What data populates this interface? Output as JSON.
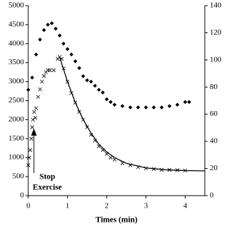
{
  "chart_data": {
    "type": "line",
    "x_label": "Times (min)",
    "annotation": [
      "Stop",
      "Exercise"
    ],
    "xlim": [
      0,
      4.5
    ],
    "xticks": [
      0,
      1,
      2,
      3,
      4
    ],
    "ylim": [
      0,
      5000
    ],
    "yticks": [
      0,
      500,
      1000,
      1500,
      2000,
      2500,
      3000,
      3500,
      4000,
      4500,
      5000
    ],
    "y2lim": [
      0,
      140
    ],
    "y2ticks": [
      0,
      20,
      40,
      60,
      80,
      100,
      120,
      140
    ],
    "series": [
      {
        "marker": "diamond",
        "color": "#000000",
        "axis": "y2",
        "x": [
          0,
          0.1,
          0.2,
          0.3,
          0.4,
          0.5,
          0.6,
          0.7,
          0.8,
          0.9,
          1.0,
          1.1,
          1.2,
          1.3,
          1.4,
          1.5,
          1.6,
          1.7,
          1.8,
          1.9,
          2.0,
          2.1,
          2.2,
          2.4,
          2.6,
          2.8,
          3.0,
          3.2,
          3.4,
          3.6,
          3.8,
          4.0,
          4.1
        ],
        "values": [
          78,
          87,
          104,
          115,
          122,
          126,
          127,
          123,
          118,
          112,
          108,
          104,
          99,
          94,
          88,
          85,
          84,
          81,
          78,
          76,
          71,
          69,
          67,
          66,
          65,
          65,
          65,
          65,
          65,
          66,
          67,
          69,
          69
        ]
      },
      {
        "marker": "cross",
        "color": "#000000",
        "x": [
          0,
          0.02,
          0.05,
          0.08,
          0.1,
          0.12,
          0.15,
          0.18,
          0.2,
          0.25,
          0.3,
          0.35,
          0.4,
          0.45,
          0.5,
          0.55,
          0.65,
          0.75,
          0.8,
          0.85,
          0.9,
          1.0,
          1.1,
          1.2,
          1.3,
          1.4,
          1.5,
          1.6,
          1.7,
          1.8,
          1.9,
          2.0,
          2.1,
          2.2,
          2.4,
          2.6,
          2.8,
          3.0,
          3.2,
          3.4,
          3.6,
          3.8,
          4.0
        ],
        "values": [
          800,
          1000,
          1200,
          1500,
          1800,
          2000,
          2200,
          2050,
          2300,
          2600,
          2800,
          3000,
          3150,
          3250,
          3300,
          3300,
          3300,
          3600,
          3650,
          3600,
          3350,
          3000,
          2700,
          2450,
          2200,
          2000,
          1800,
          1600,
          1450,
          1300,
          1200,
          1100,
          1000,
          950,
          850,
          800,
          750,
          720,
          700,
          680,
          680,
          670,
          660
        ]
      },
      {
        "marker": "none",
        "color": "#000000",
        "x": [
          0.8,
          1.0,
          1.2,
          1.4,
          1.6,
          1.8,
          2.0,
          2.2,
          2.5,
          3.0,
          3.5,
          4.0,
          4.5
        ],
        "values": [
          3650,
          3000,
          2450,
          2000,
          1650,
          1350,
          1150,
          1000,
          850,
          730,
          680,
          660,
          650
        ]
      }
    ]
  }
}
